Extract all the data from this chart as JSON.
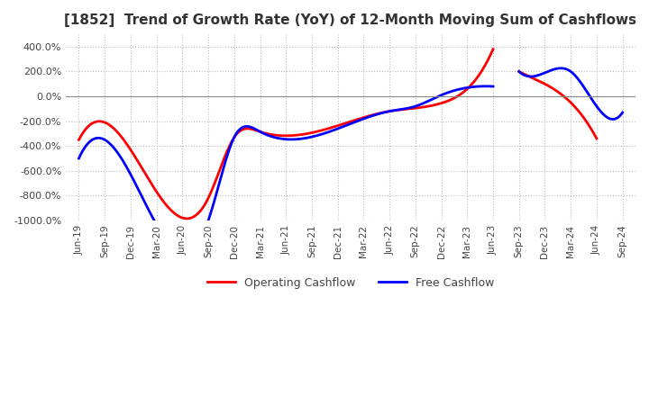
{
  "title": "[1852]  Trend of Growth Rate (YoY) of 12-Month Moving Sum of Cashflows",
  "title_fontsize": 11,
  "ylim": [
    -1000,
    500
  ],
  "yticks": [
    400,
    200,
    0,
    -200,
    -400,
    -600,
    -800,
    -1000
  ],
  "background_color": "#ffffff",
  "grid_color": "#bbbbbb",
  "legend": [
    "Operating Cashflow",
    "Free Cashflow"
  ],
  "line_colors": [
    "#ff0000",
    "#0000ff"
  ],
  "x_labels": [
    "Jun-19",
    "Sep-19",
    "Dec-19",
    "Mar-20",
    "Jun-20",
    "Sep-20",
    "Dec-20",
    "Mar-21",
    "Jun-21",
    "Sep-21",
    "Dec-21",
    "Mar-22",
    "Jun-22",
    "Sep-22",
    "Dec-22",
    "Mar-23",
    "Jun-23",
    "Sep-23",
    "Dec-23",
    "Mar-24",
    "Jun-24",
    "Sep-24"
  ],
  "operating_cashflow": [
    -350,
    -210,
    null,
    null,
    null,
    -820,
    -330,
    -285,
    null,
    null,
    null,
    null,
    -120,
    -95,
    -55,
    60,
    380,
    null,
    null,
    null,
    null,
    null
  ],
  "free_cashflow": [
    -500,
    -350,
    null,
    null,
    null,
    -1000,
    -330,
    -285,
    null,
    null,
    null,
    null,
    -120,
    -80,
    10,
    70,
    80,
    null,
    null,
    null,
    null,
    null
  ],
  "operating_cashflow2": [
    null,
    null,
    null,
    null,
    null,
    null,
    null,
    null,
    null,
    null,
    null,
    null,
    null,
    null,
    null,
    null,
    null,
    200,
    100,
    -50,
    -340,
    null
  ],
  "free_cashflow2": [
    null,
    null,
    null,
    null,
    null,
    null,
    null,
    null,
    null,
    null,
    null,
    null,
    null,
    null,
    null,
    null,
    null,
    200,
    190,
    200,
    -80,
    -130
  ],
  "operating_cashflow3": [
    null,
    null,
    null,
    null,
    null,
    null,
    null,
    null,
    null,
    null,
    null,
    null,
    null,
    null,
    null,
    null,
    null,
    null,
    null,
    null,
    null,
    null
  ],
  "free_cashflow3": [
    null,
    null,
    null,
    null,
    null,
    null,
    null,
    null,
    null,
    null,
    null,
    null,
    null,
    null,
    null,
    null,
    null,
    null,
    null,
    null,
    null,
    null
  ]
}
